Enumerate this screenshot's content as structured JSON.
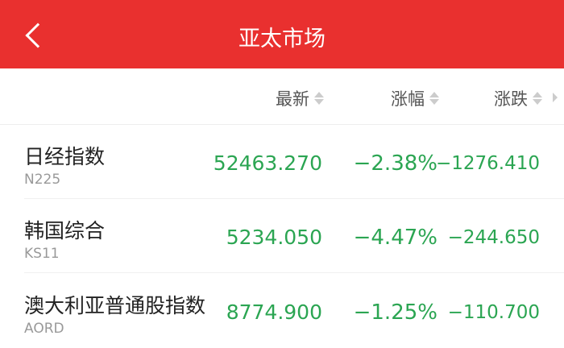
{
  "header": {
    "title": "亚太市场",
    "back_icon": "chevron-left-icon",
    "color": "#e9302f"
  },
  "columns": {
    "latest": "最新",
    "pct": "涨幅",
    "change": "涨跌"
  },
  "colors": {
    "down": "#2ba552"
  },
  "rows": [
    {
      "name": "日经指数",
      "code": "N225",
      "latest": "52463.270",
      "pct": "−2.38%",
      "change": "−1276.410"
    },
    {
      "name": "韩国综合",
      "code": "KS11",
      "latest": "5234.050",
      "pct": "−4.47%",
      "change": "−244.650"
    },
    {
      "name": "澳大利亚普通股指数",
      "code": "AORD",
      "latest": "8774.900",
      "pct": "−1.25%",
      "change": "−110.700"
    }
  ]
}
